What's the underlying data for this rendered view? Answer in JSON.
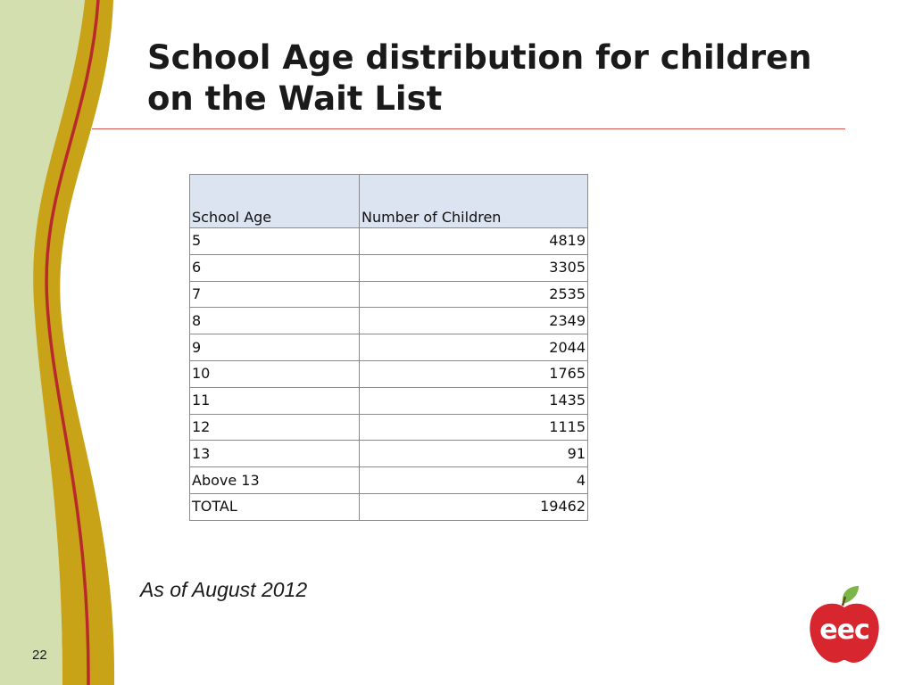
{
  "slide": {
    "title_line1": "School Age distribution for children",
    "title_line2": "on the Wait List",
    "note": "As of August 2012",
    "page_number": "22",
    "logo_text": "eec"
  },
  "table": {
    "headers": [
      "School Age",
      "Number of Children"
    ],
    "rows": [
      {
        "age": "5",
        "count": "4819"
      },
      {
        "age": "6",
        "count": "3305"
      },
      {
        "age": "7",
        "count": "2535"
      },
      {
        "age": "8",
        "count": "2349"
      },
      {
        "age": "9",
        "count": "2044"
      },
      {
        "age": "10",
        "count": "1765"
      },
      {
        "age": "11",
        "count": "1435"
      },
      {
        "age": "12",
        "count": "1115"
      },
      {
        "age": "13",
        "count": "91"
      },
      {
        "age": "Above 13",
        "count": "4"
      },
      {
        "age": "TOTAL",
        "count": "19462"
      }
    ]
  },
  "colors": {
    "band_green": "#d4dfaf",
    "band_gold": "#c8a318",
    "accent_red": "#d9534f",
    "header_fill": "#dce3f1",
    "logo_red": "#d8262f",
    "logo_leaf": "#7ab648"
  }
}
